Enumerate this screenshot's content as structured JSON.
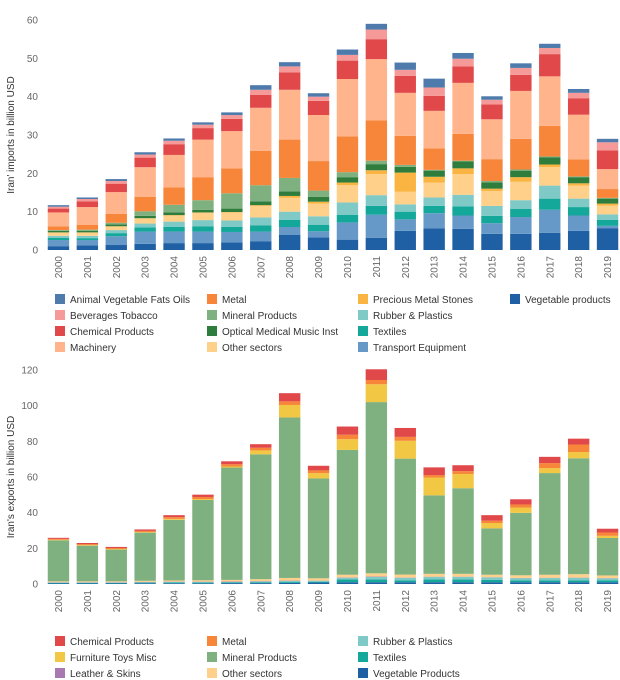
{
  "chart_data": [
    {
      "type": "bar",
      "stacked": true,
      "title": "",
      "xlabel": "",
      "ylabel": "Iran' imports in billion USD",
      "ylim": [
        0,
        60
      ],
      "y_ticks": [
        0,
        10,
        20,
        30,
        40,
        50,
        60
      ],
      "grid": false,
      "legend_position": "bottom",
      "categories": [
        "2000",
        "2001",
        "2002",
        "2003",
        "2004",
        "2005",
        "2006",
        "2007",
        "2008",
        "2009",
        "2010",
        "2011",
        "2012",
        "2013",
        "2014",
        "2015",
        "2016",
        "2017",
        "2018",
        "2019"
      ],
      "series": [
        {
          "name": "Vegetable products",
          "color": "#1f5fa3",
          "values": [
            1.0,
            1.2,
            1.3,
            1.6,
            1.8,
            1.8,
            2.0,
            2.3,
            4.0,
            3.3,
            2.7,
            3.2,
            5.0,
            5.6,
            5.5,
            4.2,
            4.2,
            4.5,
            5.0,
            5.7
          ]
        },
        {
          "name": "Transport Equipment",
          "color": "#6699c8",
          "values": [
            1.6,
            1.4,
            2.3,
            3.2,
            3.0,
            3.0,
            2.7,
            2.5,
            2.0,
            1.6,
            4.5,
            6.0,
            3.0,
            4.0,
            3.5,
            2.8,
            4.4,
            6.0,
            4.0,
            0.6
          ]
        },
        {
          "name": "Textiles",
          "color": "#14a89a",
          "values": [
            0.6,
            0.5,
            0.8,
            1.1,
            1.2,
            1.4,
            1.3,
            1.6,
            1.9,
            1.7,
            2.0,
            2.3,
            2.0,
            1.9,
            2.4,
            1.9,
            2.1,
            2.9,
            2.2,
            1.6
          ]
        },
        {
          "name": "Rubber & Plastics",
          "color": "#7fc9c6",
          "values": [
            0.5,
            0.6,
            0.8,
            1.0,
            1.4,
            1.6,
            1.7,
            2.1,
            2.1,
            2.2,
            3.2,
            2.8,
            1.9,
            2.2,
            3.0,
            2.6,
            2.3,
            3.4,
            2.2,
            1.4
          ]
        },
        {
          "name": "Other sectors",
          "color": "#ffd08a",
          "values": [
            0.8,
            0.8,
            0.9,
            1.3,
            1.6,
            1.9,
            2.1,
            3.0,
            3.6,
            3.3,
            4.5,
            5.5,
            3.3,
            3.9,
            5.4,
            3.9,
            4.8,
            4.8,
            3.4,
            2.3
          ]
        },
        {
          "name": "Precious Metal Stones",
          "color": "#f9b441",
          "values": [
            0.1,
            0.1,
            0.1,
            0.1,
            0.1,
            0.1,
            0.1,
            0.2,
            0.5,
            0.5,
            0.7,
            1.0,
            5.0,
            1.5,
            1.5,
            0.6,
            1.2,
            0.7,
            0.6,
            0.5
          ]
        },
        {
          "name": "Optical Medical Music Inst",
          "color": "#2f7d3c",
          "values": [
            0.4,
            0.4,
            0.5,
            0.6,
            0.7,
            0.7,
            0.9,
            1.0,
            1.2,
            1.3,
            1.4,
            1.6,
            1.5,
            1.6,
            1.8,
            1.6,
            1.7,
            1.9,
            1.6,
            1.3
          ]
        },
        {
          "name": "Mineral Products",
          "color": "#7fb07f",
          "values": [
            0.2,
            0.3,
            0.4,
            1.2,
            2.0,
            2.5,
            4.0,
            4.2,
            3.5,
            1.6,
            1.3,
            0.9,
            0.5,
            0.2,
            0.2,
            0.4,
            0.3,
            0.2,
            0.2,
            0.2
          ]
        },
        {
          "name": "Metal",
          "color": "#f7863a",
          "values": [
            1.0,
            1.3,
            2.3,
            3.8,
            4.5,
            6.0,
            6.5,
            9.0,
            10.0,
            7.7,
            9.3,
            10.5,
            7.6,
            5.6,
            7.0,
            5.7,
            8.0,
            8.0,
            4.4,
            2.3
          ]
        },
        {
          "name": "Machinery",
          "color": "#ffb48c",
          "values": [
            3.6,
            4.6,
            5.7,
            7.7,
            8.5,
            9.8,
            9.7,
            11.2,
            13.0,
            12.0,
            15.0,
            16.0,
            11.2,
            9.8,
            13.3,
            10.4,
            12.5,
            12.9,
            11.7,
            5.2
          ]
        },
        {
          "name": "Chemical Products",
          "color": "#e04849",
          "values": [
            1.0,
            1.5,
            2.2,
            2.5,
            2.8,
            3.0,
            3.2,
            3.4,
            4.5,
            3.7,
            4.8,
            5.2,
            4.4,
            3.9,
            4.3,
            3.9,
            4.2,
            5.8,
            4.3,
            4.9
          ]
        },
        {
          "name": "Beverages Tobacco",
          "color": "#f59a98",
          "values": [
            0.5,
            0.6,
            0.7,
            0.8,
            0.9,
            0.9,
            1.0,
            1.3,
            1.6,
            1.1,
            1.5,
            2.5,
            1.6,
            2.2,
            2.0,
            1.2,
            1.8,
            1.6,
            1.4,
            2.1
          ]
        },
        {
          "name": "Animal Vegetable Fats Oils",
          "color": "#4f7bac",
          "values": [
            0.4,
            0.4,
            0.5,
            0.6,
            0.6,
            0.6,
            0.7,
            1.2,
            1.1,
            0.9,
            1.4,
            1.5,
            1.9,
            2.3,
            1.5,
            0.9,
            1.2,
            1.1,
            1.0,
            0.9
          ]
        }
      ]
    },
    {
      "type": "bar",
      "stacked": true,
      "title": "",
      "xlabel": "",
      "ylabel": "Iran's exports in billion USD",
      "ylim": [
        0,
        120
      ],
      "y_ticks": [
        0,
        20,
        40,
        60,
        80,
        100,
        120
      ],
      "grid": false,
      "legend_position": "bottom",
      "categories": [
        "2000",
        "2001",
        "2002",
        "2003",
        "2004",
        "2005",
        "2006",
        "2007",
        "2008",
        "2009",
        "2010",
        "2011",
        "2012",
        "2013",
        "2014",
        "2015",
        "2016",
        "2017",
        "2018",
        "2019"
      ],
      "series": [
        {
          "name": "Vegetable Products",
          "color": "#1f5fa3",
          "values": [
            0.3,
            0.3,
            0.3,
            0.4,
            0.4,
            0.4,
            0.5,
            0.5,
            0.6,
            0.8,
            1.0,
            1.0,
            1.0,
            1.0,
            1.0,
            1.0,
            1.0,
            1.0,
            1.0,
            1.0
          ]
        },
        {
          "name": "Textiles",
          "color": "#14a89a",
          "values": [
            0.3,
            0.3,
            0.3,
            0.4,
            0.4,
            0.4,
            0.4,
            0.5,
            0.5,
            0.5,
            1.5,
            1.5,
            1.0,
            1.5,
            1.5,
            1.3,
            1.0,
            1.0,
            1.0,
            1.0
          ]
        },
        {
          "name": "Rubber & Plastics",
          "color": "#7fc9c6",
          "values": [
            0.2,
            0.2,
            0.2,
            0.2,
            0.3,
            0.3,
            0.3,
            0.4,
            0.6,
            0.5,
            1.0,
            1.5,
            1.5,
            1.5,
            1.5,
            1.4,
            1.3,
            1.4,
            1.5,
            1.2
          ]
        },
        {
          "name": "Leather & Skins",
          "color": "#a879b0",
          "values": [
            0.2,
            0.2,
            0.2,
            0.2,
            0.2,
            0.2,
            0.2,
            0.2,
            0.2,
            0.1,
            0.2,
            0.2,
            0.1,
            0.1,
            0.1,
            0.1,
            0.1,
            0.1,
            0.1,
            0.1
          ]
        },
        {
          "name": "Other sectors",
          "color": "#ffd08a",
          "values": [
            0.5,
            0.5,
            0.5,
            0.6,
            0.7,
            0.8,
            0.9,
            1.1,
            1.5,
            1.3,
            1.5,
            1.8,
            1.7,
            1.6,
            1.6,
            1.4,
            1.5,
            1.7,
            1.9,
            1.5
          ]
        },
        {
          "name": "Mineral Products",
          "color": "#7fb07f",
          "values": [
            23.0,
            20.0,
            17.8,
            27.0,
            34.0,
            45.0,
            63.0,
            70.0,
            90.0,
            56.0,
            70.0,
            96.0,
            65.0,
            44.0,
            48.0,
            26.0,
            35.0,
            57.0,
            65.0,
            21.0
          ]
        },
        {
          "name": "Furniture Toys Misc",
          "color": "#f2c744",
          "values": [
            0.3,
            0.3,
            0.3,
            0.3,
            0.5,
            0.5,
            0.6,
            2.2,
            7.0,
            3.0,
            6.0,
            10.0,
            10.0,
            10.0,
            8.0,
            3.0,
            3.0,
            2.8,
            3.5,
            1.2
          ]
        },
        {
          "name": "Metal",
          "color": "#f7863a",
          "values": [
            0.5,
            0.6,
            0.6,
            0.7,
            1.0,
            1.2,
            1.3,
            1.5,
            2.0,
            1.5,
            2.5,
            2.4,
            2.2,
            1.4,
            1.6,
            1.3,
            1.7,
            2.8,
            4.2,
            1.9
          ]
        },
        {
          "name": "Chemical Products",
          "color": "#e04849",
          "values": [
            0.6,
            0.6,
            0.6,
            0.8,
            1.1,
            1.3,
            1.6,
            2.0,
            4.6,
            2.6,
            4.6,
            6.0,
            5.0,
            4.3,
            3.3,
            3.1,
            2.9,
            3.5,
            3.3,
            2.1
          ]
        }
      ]
    }
  ]
}
